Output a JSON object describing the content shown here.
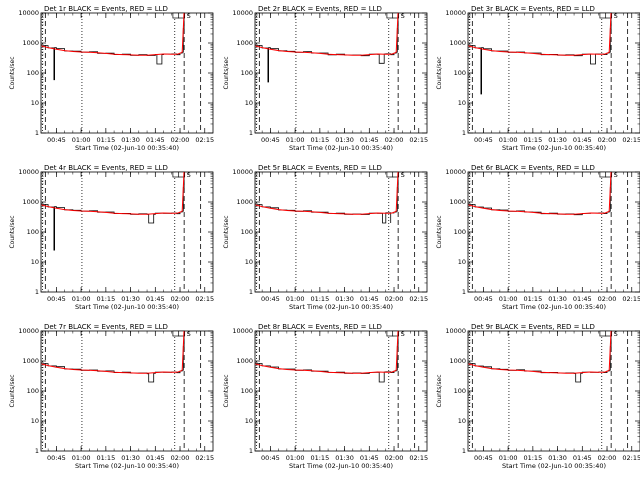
{
  "chart_data": {
    "type": "line",
    "layout": {
      "rows": 3,
      "cols": 3
    },
    "colors": {
      "events": "#000000",
      "lld": "#ff0000"
    },
    "xlabel": "Start Time (02-Jun-10 00:35:40)",
    "ylabel": "Counts/sec",
    "x_ticks": [
      "00:45",
      "01:00",
      "01:15",
      "01:30",
      "01:45",
      "02:00",
      "02:15"
    ],
    "x_tick_minutes": [
      45,
      60,
      75,
      90,
      105,
      120,
      135
    ],
    "xlim_minutes": [
      35.67,
      140
    ],
    "y_scale": "log",
    "ylim": [
      1,
      10000
    ],
    "y_ticks": [
      "1",
      "10",
      "100",
      "1000",
      "10000"
    ],
    "y_tick_values": [
      1,
      10,
      100,
      1000,
      10000
    ],
    "dotted_lines_minutes": [
      36.6,
      60.5,
      116.8
    ],
    "dashed_lines_minutes": [
      38.3,
      122.5,
      132.5
    ],
    "box_marker_minutes": [
      117.5,
      121.0
    ],
    "box_marker_label": "S",
    "lld_x_minutes": [
      36,
      40,
      45,
      50,
      55,
      60,
      65,
      70,
      75,
      80,
      85,
      90,
      95,
      100,
      105,
      110,
      115,
      118,
      120,
      121.3,
      122,
      122.5
    ],
    "lld_values": [
      800,
      700,
      620,
      560,
      520,
      500,
      490,
      470,
      450,
      420,
      410,
      400,
      390,
      390,
      410,
      430,
      420,
      420,
      450,
      500,
      3000,
      12000
    ],
    "panels": [
      {
        "title": "Det 1r BLACK = Events, RED = LLD",
        "events_offsets": [
          1.02,
          0.98,
          1.05,
          0.97,
          1.03,
          0.99,
          1.04,
          0.96,
          1.02,
          0.98,
          1.03,
          0.97,
          1.05,
          0.98,
          1.02,
          0.99,
          1.03,
          0.97,
          1.02,
          0.99,
          1.0,
          1.0
        ],
        "dips": [
          {
            "x_minutes": 43.5,
            "value": 60
          },
          {
            "x_minutes": 106,
            "value": 200,
            "width_minutes": 3
          }
        ]
      },
      {
        "title": "Det 2r BLACK = Events, RED = LLD",
        "events_offsets": [
          1.03,
          0.97,
          1.04,
          0.98,
          1.02,
          0.97,
          1.05,
          0.98,
          1.03,
          0.96,
          1.04,
          0.99,
          1.02,
          0.97,
          1.03,
          0.98,
          1.04,
          0.97,
          1.02,
          0.99,
          1.0,
          1.0
        ],
        "dips": [
          {
            "x_minutes": 43.5,
            "value": 50
          },
          {
            "x_minutes": 111,
            "value": 210,
            "width_minutes": 3
          }
        ]
      },
      {
        "title": "Det 3r BLACK = Events, RED = LLD",
        "events_offsets": [
          1.02,
          0.98,
          1.03,
          0.97,
          1.04,
          0.98,
          1.02,
          0.99,
          1.03,
          0.97,
          1.02,
          0.98,
          1.04,
          0.97,
          1.03,
          0.99,
          1.02,
          0.98,
          1.03,
          0.99,
          1.0,
          1.0
        ],
        "dips": [
          {
            "x_minutes": 43.5,
            "value": 20
          },
          {
            "x_minutes": 110,
            "value": 200,
            "width_minutes": 3
          }
        ]
      },
      {
        "title": "Det 4r BLACK = Events, RED = LLD",
        "events_offsets": [
          1.03,
          0.97,
          1.05,
          0.98,
          1.02,
          0.99,
          1.04,
          0.97,
          1.03,
          0.98,
          1.02,
          0.97,
          1.04,
          0.99,
          1.03,
          0.98,
          1.02,
          0.97,
          1.03,
          0.99,
          1.0,
          1.0
        ],
        "dips": [
          {
            "x_minutes": 43.5,
            "value": 25
          },
          {
            "x_minutes": 101,
            "value": 200,
            "width_minutes": 3
          }
        ]
      },
      {
        "title": "Det 5r BLACK = Events, RED = LLD",
        "events_offsets": [
          1.02,
          0.98,
          1.03,
          0.97,
          1.02,
          0.98,
          1.04,
          0.97,
          1.02,
          0.99,
          1.03,
          0.97,
          1.02,
          0.98,
          1.03,
          0.97,
          1.04,
          0.98,
          1.02,
          0.99,
          1.0,
          1.0
        ],
        "dips": [
          {
            "x_minutes": 113,
            "value": 200,
            "width_minutes": 5
          }
        ]
      },
      {
        "title": "Det 6r BLACK = Events, RED = LLD",
        "events_offsets": [
          1.03,
          0.97,
          1.02,
          0.98,
          1.04,
          0.97,
          1.03,
          0.99,
          1.02,
          0.97,
          1.04,
          0.98,
          1.03,
          0.97,
          1.02,
          0.99,
          1.03,
          0.98,
          1.02,
          0.99,
          1.0,
          1.0
        ],
        "dips": []
      },
      {
        "title": "Det 7r BLACK = Events, RED = LLD",
        "events_offsets": [
          1.02,
          0.98,
          1.04,
          0.97,
          1.03,
          0.98,
          1.02,
          0.97,
          1.04,
          0.98,
          1.03,
          0.99,
          1.02,
          0.97,
          1.03,
          0.98,
          1.02,
          0.97,
          1.03,
          0.99,
          1.0,
          1.0
        ],
        "dips": [
          {
            "x_minutes": 101,
            "value": 200,
            "width_minutes": 3
          }
        ]
      },
      {
        "title": "Det 8r BLACK = Events, RED = LLD",
        "events_offsets": [
          1.03,
          0.98,
          1.02,
          0.97,
          1.04,
          0.98,
          1.03,
          0.97,
          1.02,
          0.99,
          1.04,
          0.97,
          1.03,
          0.98,
          1.02,
          0.97,
          1.04,
          0.98,
          1.03,
          0.99,
          1.0,
          1.0
        ],
        "dips": [
          {
            "x_minutes": 111,
            "value": 200,
            "width_minutes": 3
          }
        ]
      },
      {
        "title": "Det 9r BLACK = Events, RED = LLD",
        "events_offsets": [
          1.02,
          0.97,
          1.03,
          0.98,
          1.02,
          0.97,
          1.04,
          0.98,
          1.03,
          0.97,
          1.02,
          0.99,
          1.03,
          0.98,
          1.04,
          0.97,
          1.02,
          0.98,
          1.03,
          0.99,
          1.0,
          1.0
        ],
        "dips": [
          {
            "x_minutes": 101,
            "value": 200,
            "width_minutes": 3
          }
        ]
      }
    ]
  }
}
